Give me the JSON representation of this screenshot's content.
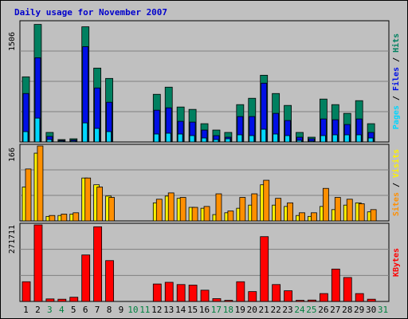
{
  "chart_data": {
    "type": "bar",
    "title": "Daily usage for November 2007",
    "categories": [
      "1",
      "2",
      "3",
      "4",
      "5",
      "6",
      "7",
      "8",
      "9",
      "10",
      "11",
      "12",
      "13",
      "14",
      "15",
      "16",
      "17",
      "18",
      "19",
      "20",
      "21",
      "22",
      "23",
      "24",
      "25",
      "26",
      "27",
      "28",
      "29",
      "30",
      "31"
    ],
    "weekend_days": [
      "3",
      "4",
      "10",
      "11",
      "17",
      "18",
      "24",
      "25",
      "31"
    ],
    "colors": {
      "pages": "#00d6ff",
      "files": "#0010e6",
      "hits": "#008060",
      "sites": "#ff8f00",
      "visits": "#fff200",
      "kbytes": "#ff0000",
      "weekday_label": "#000000",
      "weekend_label": "#008040",
      "background": "#c0c0c0",
      "title": "#0000cc"
    },
    "panels": [
      {
        "id": "top",
        "ymax_label": "1506",
        "ylim": [
          0,
          1506
        ],
        "series": [
          {
            "name": "Hits",
            "color": "#008060",
            "values": [
              820,
              1480,
              120,
              30,
              40,
              1450,
              930,
              800,
              0,
              0,
              0,
              600,
              690,
              440,
              410,
              230,
              150,
              120,
              470,
              550,
              840,
              610,
              460,
              120,
              60,
              540,
              470,
              360,
              520,
              230,
              0
            ]
          },
          {
            "name": "Files",
            "color": "#0010e6",
            "values": [
              610,
              1060,
              70,
              20,
              25,
              1200,
              680,
              500,
              0,
              0,
              0,
              400,
              430,
              260,
              250,
              150,
              80,
              60,
              320,
              320,
              740,
              360,
              270,
              60,
              40,
              290,
              280,
              220,
              290,
              120,
              0
            ]
          },
          {
            "name": "Pages",
            "color": "#00d6ff",
            "values": [
              130,
              300,
              30,
              10,
              10,
              240,
              170,
              130,
              0,
              0,
              0,
              100,
              110,
              100,
              80,
              50,
              30,
              40,
              90,
              80,
              160,
              100,
              80,
              20,
              10,
              80,
              90,
              90,
              90,
              50,
              0
            ]
          }
        ],
        "side_label": [
          {
            "text": "Pages",
            "color": "#00d6ff"
          },
          {
            "text": " / ",
            "color": "#000000"
          },
          {
            "text": "Files",
            "color": "#0010e6"
          },
          {
            "text": " / ",
            "color": "#000000"
          },
          {
            "text": "Hits",
            "color": "#008060"
          }
        ]
      },
      {
        "id": "middle",
        "ymax_label": "166",
        "ylim": [
          0,
          166
        ],
        "series": [
          {
            "name": "Visits",
            "color": "#fff200",
            "values": [
              75,
              150,
              10,
              12,
              15,
              95,
              80,
              55,
              0,
              0,
              0,
              40,
              55,
              50,
              30,
              28,
              14,
              18,
              28,
              35,
              80,
              35,
              32,
              12,
              10,
              32,
              25,
              35,
              40,
              20,
              0
            ]
          },
          {
            "name": "Sites",
            "color": "#ff8f00",
            "values": [
              115,
              166,
              12,
              15,
              18,
              95,
              75,
              52,
              0,
              0,
              0,
              48,
              62,
              52,
              30,
              32,
              60,
              22,
              52,
              60,
              90,
              50,
              40,
              18,
              18,
              72,
              52,
              48,
              38,
              25,
              0
            ]
          }
        ],
        "side_label": [
          {
            "text": "Sites",
            "color": "#ff8f00"
          },
          {
            "text": " / ",
            "color": "#000000"
          },
          {
            "text": "Visits",
            "color": "#fff200"
          }
        ]
      },
      {
        "id": "bottom",
        "ymax_label": "271711",
        "ylim": [
          0,
          271711
        ],
        "series": [
          {
            "name": "KBytes",
            "color": "#ff0000",
            "values": [
              70000,
              271711,
              9000,
              8000,
              15000,
              165000,
              265000,
              145000,
              0,
              0,
              0,
              62000,
              68000,
              60000,
              58000,
              40000,
              10000,
              4000,
              70000,
              35000,
              230000,
              60000,
              38000,
              4000,
              5000,
              28000,
              115000,
              85000,
              28000,
              8000,
              0
            ]
          }
        ],
        "side_label": [
          {
            "text": "KBytes",
            "color": "#ff0000"
          }
        ]
      }
    ],
    "grid": true
  }
}
